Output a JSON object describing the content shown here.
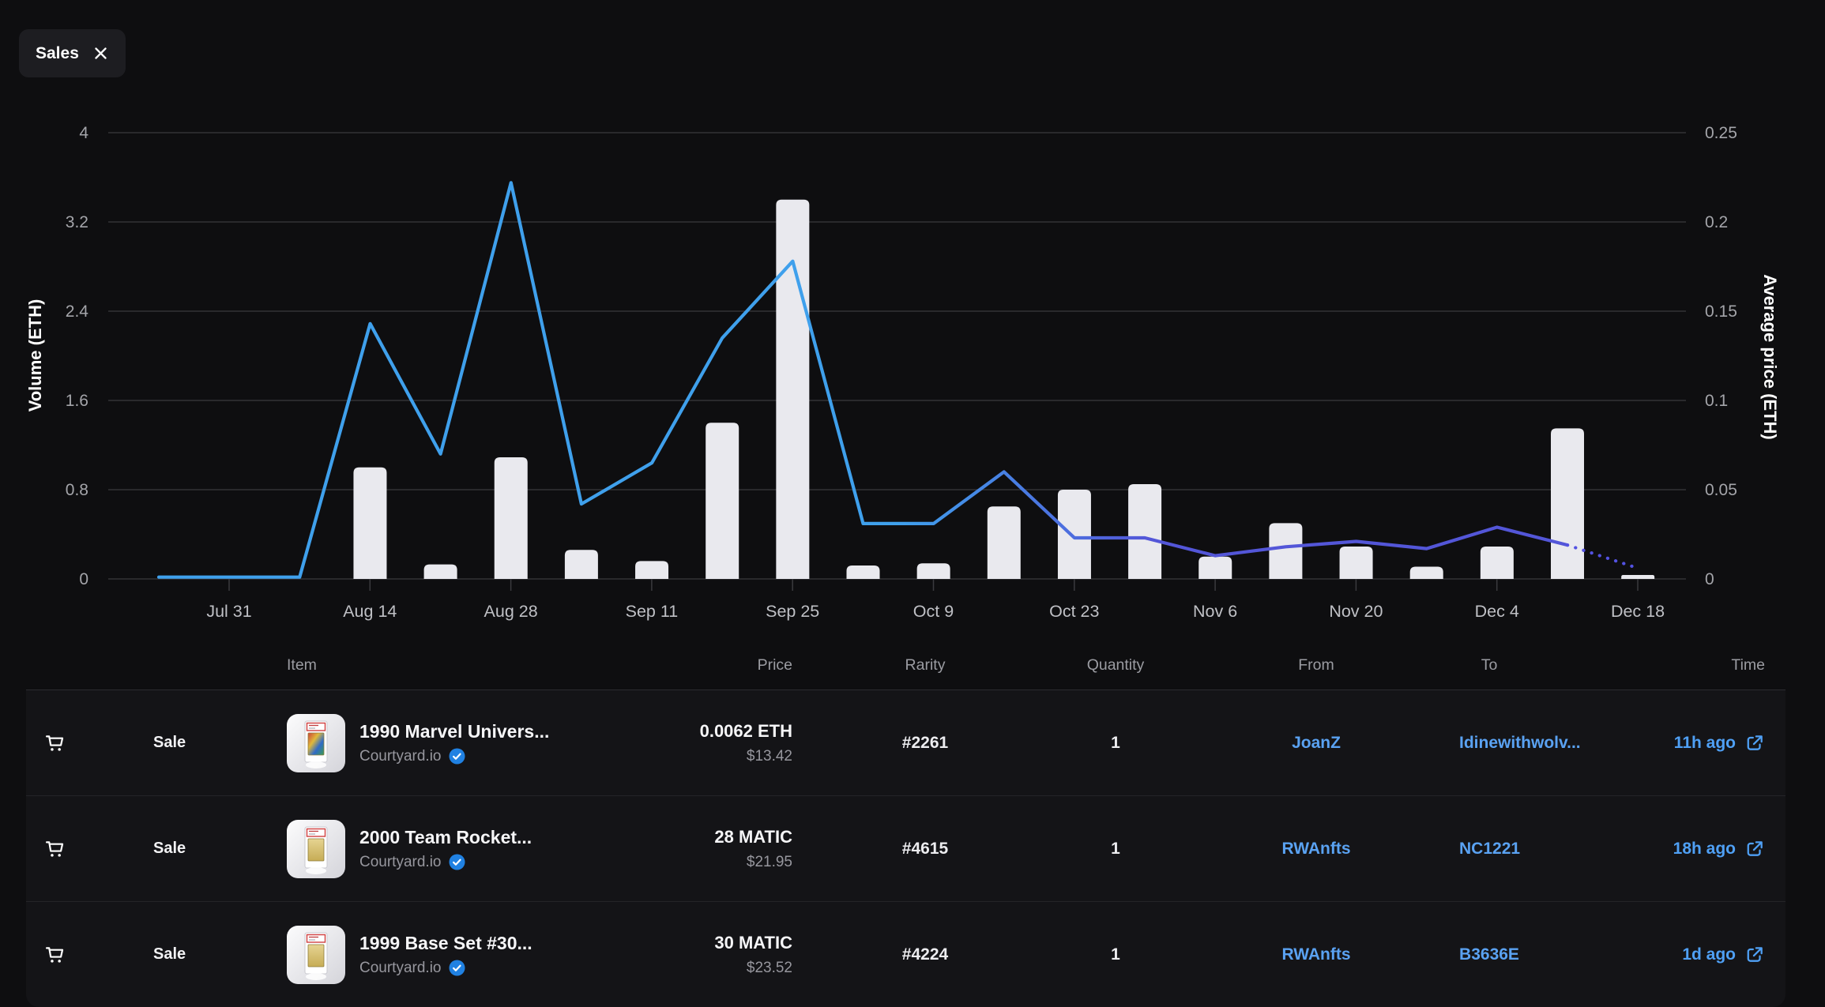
{
  "filter_chip": {
    "label": "Sales"
  },
  "chart_data": {
    "type": "bar+line",
    "grid": "on",
    "legend_position": "none",
    "x_tick_labels": [
      "Jul 31",
      "Aug 14",
      "Aug 28",
      "Sep 11",
      "Sep 25",
      "Oct 9",
      "Oct 23",
      "Nov 6",
      "Nov 20",
      "Dec 4",
      "Dec 18"
    ],
    "dates": [
      "Jul 24",
      "Jul 31",
      "Aug 7",
      "Aug 14",
      "Aug 21",
      "Aug 28",
      "Sep 4",
      "Sep 11",
      "Sep 18",
      "Sep 25",
      "Oct 2",
      "Oct 9",
      "Oct 16",
      "Oct 23",
      "Oct 30",
      "Nov 6",
      "Nov 13",
      "Nov 20",
      "Nov 27",
      "Dec 4",
      "Dec 11",
      "Dec 18"
    ],
    "series": [
      {
        "name": "Volume (ETH)",
        "type": "bar",
        "axis": "left",
        "values": [
          0,
          0,
          0,
          1.0,
          0.13,
          1.09,
          0.26,
          0.16,
          1.4,
          3.4,
          0.12,
          0.14,
          0.65,
          0.8,
          0.85,
          0.2,
          0.5,
          0.29,
          0.11,
          0.29,
          1.35,
          0.035
        ]
      },
      {
        "name": "Average price (ETH)",
        "type": "line",
        "axis": "right",
        "dotted_tail_segments": 1,
        "values": [
          0.001,
          0.001,
          0.001,
          0.143,
          0.07,
          0.222,
          0.042,
          0.065,
          0.135,
          0.178,
          0.031,
          0.031,
          0.06,
          0.023,
          0.023,
          0.013,
          0.018,
          0.021,
          0.017,
          0.029,
          0.019,
          0.006
        ]
      }
    ],
    "left_axis": {
      "label": "Volume (ETH)",
      "ticks": [
        "0",
        "0.8",
        "1.6",
        "2.4",
        "3.2",
        "4"
      ],
      "max": 4
    },
    "right_axis": {
      "label": "Average price (ETH)",
      "ticks": [
        "0",
        "0.05",
        "0.1",
        "0.15",
        "0.2",
        "0.25"
      ],
      "max": 0.25
    },
    "colors": {
      "bar": "#e9e9ee",
      "line_start": "#3fa0ec",
      "line_end": "#5356d8",
      "line_dotted": "#5352e2",
      "grid": "#3a3a3e",
      "y_tick_text": "#a4a5aa",
      "x_tick_text": "#bfc0c5",
      "axis_title": "#ffffff"
    }
  },
  "table": {
    "headers": [
      "Item",
      "Price",
      "Rarity",
      "Quantity",
      "From",
      "To",
      "Time"
    ],
    "link_color": "#5aa2f2",
    "rows": [
      {
        "event": "Sale",
        "item_name": "1990 Marvel Univers...",
        "collection": "Courtyard.io",
        "verified": true,
        "price": "0.0062 ETH",
        "price_usd": "$13.42",
        "rarity": "#2261",
        "quantity": "1",
        "from": "JoanZ",
        "to": "Idinewithwolv...",
        "time": "11h ago",
        "thumb_style": "marvel"
      },
      {
        "event": "Sale",
        "item_name": "2000 Team Rocket...",
        "collection": "Courtyard.io",
        "verified": true,
        "price": "28 MATIC",
        "price_usd": "$21.95",
        "rarity": "#4615",
        "quantity": "1",
        "from": "RWAnfts",
        "to": "NC1221",
        "time": "18h ago",
        "thumb_style": "pokemon"
      },
      {
        "event": "Sale",
        "item_name": "1999 Base Set #30...",
        "collection": "Courtyard.io",
        "verified": true,
        "price": "30 MATIC",
        "price_usd": "$23.52",
        "rarity": "#4224",
        "quantity": "1",
        "from": "RWAnfts",
        "to": "B3636E",
        "time": "1d ago",
        "thumb_style": "pokemon"
      }
    ]
  }
}
